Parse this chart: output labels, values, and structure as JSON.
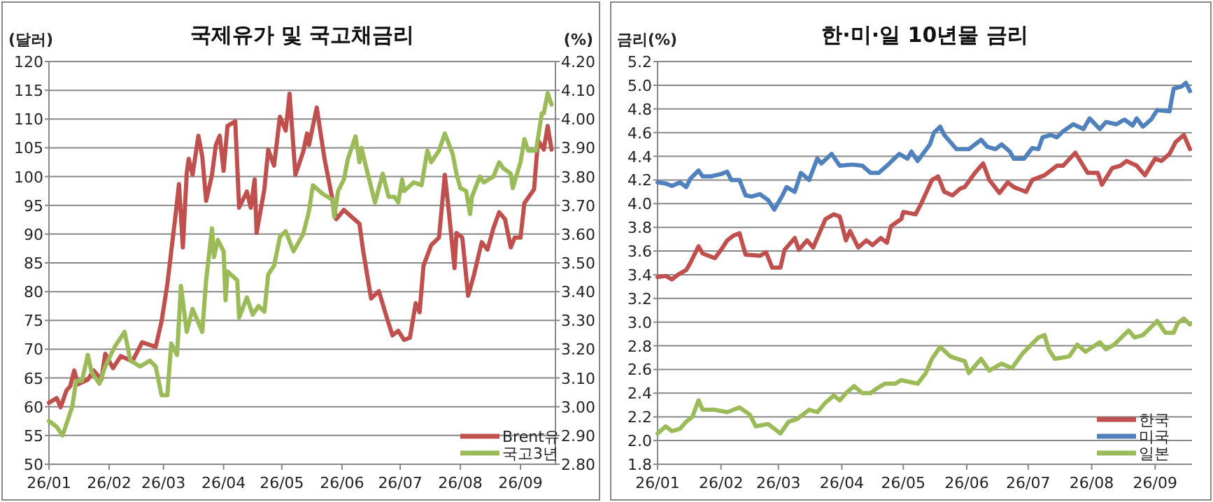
{
  "chart_data": [
    {
      "type": "line",
      "title": "국제유가 및 국고채금리",
      "ylabel": "(달러)",
      "y2label": "(%)",
      "grid": "y",
      "legend": "bottom right",
      "xlim": [
        "--01-01",
        "--09-19"
      ],
      "xticks": [
        {
          "value": "--01-01",
          "label": "26/01"
        },
        {
          "value": "--02-01",
          "label": "26/02"
        },
        {
          "value": "--03-01",
          "label": "26/03"
        },
        {
          "value": "--04-01",
          "label": "26/04"
        },
        {
          "value": "--05-01",
          "label": "26/05"
        },
        {
          "value": "--06-01",
          "label": "26/06"
        },
        {
          "value": "--07-01",
          "label": "26/07"
        },
        {
          "value": "--08-01",
          "label": "26/08"
        },
        {
          "value": "--09-01",
          "label": "26/09"
        }
      ],
      "ylim": [
        50,
        120
      ],
      "yticks": [
        50,
        55,
        60,
        65,
        70,
        75,
        80,
        85,
        90,
        95,
        100,
        105,
        110,
        115,
        120
      ],
      "y2lim": [
        2.8,
        4.2
      ],
      "y2ticks": [
        {
          "value": 2.8,
          "label": "2.80"
        },
        {
          "value": 2.9,
          "label": "2.90"
        },
        {
          "value": 3.0,
          "label": "3.00"
        },
        {
          "value": 3.1,
          "label": "3.10"
        },
        {
          "value": 3.2,
          "label": "3.20"
        },
        {
          "value": 3.3,
          "label": "3.30"
        },
        {
          "value": 3.4,
          "label": "3.40"
        },
        {
          "value": 3.5,
          "label": "3.50"
        },
        {
          "value": 3.6,
          "label": "3.60"
        },
        {
          "value": 3.7,
          "label": "3.70"
        },
        {
          "value": 3.8,
          "label": "3.80"
        },
        {
          "value": 3.9,
          "label": "3.90"
        },
        {
          "value": 4.0,
          "label": "4.00"
        },
        {
          "value": 4.1,
          "label": "4.10"
        },
        {
          "value": 4.2,
          "label": "4.20"
        }
      ],
      "series": [
        {
          "name": "Brent유",
          "color": "#c0504d",
          "x": [
            "--01-01",
            "--01-05",
            "--01-07",
            "--01-10",
            "--01-12",
            "--01-14",
            "--01-16",
            "--01-21",
            "--01-24",
            "--01-28",
            "--01-30",
            "--02-03",
            "--02-07",
            "--02-13",
            "--02-18",
            "--02-25",
            "--02-28",
            "--03-03",
            "--03-07",
            "--03-09",
            "--03-11",
            "--03-13",
            "--03-14",
            "--03-16",
            "--03-19",
            "--03-21",
            "--03-23",
            "--03-26",
            "--03-28",
            "--03-30",
            "--04-01",
            "--04-03",
            "--04-07",
            "--04-09",
            "--04-13",
            "--04-15",
            "--04-17",
            "--04-18",
            "--04-22",
            "--04-24",
            "--04-27",
            "--04-30",
            "--05-03",
            "--05-05",
            "--05-08",
            "--05-12",
            "--05-14",
            "--05-15",
            "--05-19",
            "--05-21",
            "--05-23",
            "--05-26",
            "--05-29",
            "--06-02",
            "--06-06",
            "--06-10",
            "--06-12",
            "--06-16",
            "--06-20",
            "--06-24",
            "--06-27",
            "--06-30",
            "--07-03",
            "--07-06",
            "--07-09",
            "--07-11",
            "--07-13",
            "--07-17",
            "--07-21",
            "--07-24",
            "--07-26",
            "--07-29",
            "--07-30",
            "--08-02",
            "--08-05",
            "--08-08",
            "--08-12",
            "--08-15",
            "--08-18",
            "--08-21",
            "--08-24",
            "--08-27",
            "--08-29",
            "--09-01",
            "--09-03",
            "--09-08",
            "--09-10",
            "--09-13",
            "--09-15",
            "--09-17"
          ],
          "values": [
            60.7,
            61.5,
            59.9,
            62.8,
            63.6,
            66.3,
            63.9,
            64.7,
            66.3,
            64.7,
            69.2,
            66.7,
            68.8,
            67.9,
            71.2,
            70.4,
            74.8,
            81.3,
            92.6,
            98.7,
            87.7,
            100.7,
            103.1,
            100.3,
            107.1,
            103.5,
            95.8,
            100.3,
            105.5,
            107.1,
            101.0,
            108.8,
            109.6,
            94.6,
            97.4,
            94.6,
            99.5,
            90.2,
            97.8,
            104.7,
            101.9,
            110.4,
            108.0,
            114.4,
            100.3,
            104.3,
            107.5,
            105.5,
            112.0,
            107.5,
            103.1,
            97.9,
            92.6,
            94.2,
            93.0,
            91.8,
            86.9,
            78.8,
            80.1,
            75.6,
            72.4,
            73.2,
            71.6,
            72.0,
            78.0,
            76.4,
            84.5,
            88.1,
            89.4,
            100.3,
            94.2,
            84.1,
            90.2,
            89.4,
            79.3,
            82.9,
            88.6,
            87.3,
            91.0,
            93.8,
            92.6,
            87.7,
            89.4,
            89.4,
            95.4,
            97.8,
            106.3,
            104.7,
            108.8,
            104.7
          ]
        },
        {
          "name": "국고3년",
          "color": "#9bbb59",
          "axis": "y2",
          "x": [
            "--01-01",
            "--01-05",
            "--01-08",
            "--01-10",
            "--01-13",
            "--01-15",
            "--01-18",
            "--01-21",
            "--01-23",
            "--01-27",
            "--01-30",
            "--02-04",
            "--02-09",
            "--02-12",
            "--02-17",
            "--02-22",
            "--02-25",
            "--02-28",
            "--03-03",
            "--03-05",
            "--03-08",
            "--03-10",
            "--03-13",
            "--03-16",
            "--03-21",
            "--03-23",
            "--03-26",
            "--03-27",
            "--03-29",
            "--04-01",
            "--04-02",
            "--04-03",
            "--04-08",
            "--04-09",
            "--04-13",
            "--04-16",
            "--04-19",
            "--04-22",
            "--04-24",
            "--04-27",
            "--04-30",
            "--05-03",
            "--05-07",
            "--05-12",
            "--05-15",
            "--05-17",
            "--05-22",
            "--05-27",
            "--05-28",
            "--05-30",
            "--06-02",
            "--06-04",
            "--06-08",
            "--06-10",
            "--06-11",
            "--06-15",
            "--06-18",
            "--06-22",
            "--06-25",
            "--06-28",
            "--06-30",
            "--07-02",
            "--07-03",
            "--07-08",
            "--07-12",
            "--07-15",
            "--07-17",
            "--07-21",
            "--07-24",
            "--07-28",
            "--07-30",
            "--08-01",
            "--08-04",
            "--08-06",
            "--08-07",
            "--08-11",
            "--08-13",
            "--08-18",
            "--08-21",
            "--08-23",
            "--08-27",
            "--08-28",
            "--09-01",
            "--09-03",
            "--09-05",
            "--09-09",
            "--09-12",
            "--09-13",
            "--09-15",
            "--09-17"
          ],
          "values": [
            2.95,
            2.93,
            2.9,
            2.94,
            3.0,
            3.09,
            3.09,
            3.18,
            3.12,
            3.08,
            3.14,
            3.21,
            3.26,
            3.16,
            3.14,
            3.16,
            3.14,
            3.04,
            3.04,
            3.22,
            3.18,
            3.42,
            3.26,
            3.34,
            3.26,
            3.44,
            3.62,
            3.52,
            3.58,
            3.54,
            3.37,
            3.47,
            3.44,
            3.31,
            3.38,
            3.32,
            3.35,
            3.33,
            3.46,
            3.49,
            3.59,
            3.61,
            3.54,
            3.6,
            3.68,
            3.77,
            3.74,
            3.72,
            3.66,
            3.75,
            3.79,
            3.86,
            3.94,
            3.85,
            3.9,
            3.79,
            3.71,
            3.81,
            3.73,
            3.73,
            3.71,
            3.79,
            3.75,
            3.78,
            3.77,
            3.89,
            3.85,
            3.89,
            3.95,
            3.88,
            3.81,
            3.76,
            3.75,
            3.67,
            3.73,
            3.8,
            3.78,
            3.8,
            3.85,
            3.83,
            3.81,
            3.76,
            3.85,
            3.93,
            3.89,
            3.89,
            4.02,
            4.02,
            4.09,
            4.05
          ]
        }
      ]
    },
    {
      "type": "line",
      "title": "한·미·일 10년물 금리",
      "ylabel": "금리(%)",
      "grid": "y",
      "legend": "bottom right",
      "xlim": [
        "--01-01",
        "--09-19"
      ],
      "xticks": [
        {
          "value": "--01-01",
          "label": "26/01"
        },
        {
          "value": "--02-01",
          "label": "26/02"
        },
        {
          "value": "--03-01",
          "label": "26/03"
        },
        {
          "value": "--04-01",
          "label": "26/04"
        },
        {
          "value": "--05-01",
          "label": "26/05"
        },
        {
          "value": "--06-01",
          "label": "26/06"
        },
        {
          "value": "--07-01",
          "label": "26/07"
        },
        {
          "value": "--08-01",
          "label": "26/08"
        },
        {
          "value": "--09-01",
          "label": "26/09"
        }
      ],
      "ylim": [
        1.8,
        5.2
      ],
      "yticks": [
        {
          "value": 1.8,
          "label": "1.8"
        },
        {
          "value": 2.0,
          "label": "2.0"
        },
        {
          "value": 2.2,
          "label": "2.2"
        },
        {
          "value": 2.4,
          "label": "2.4"
        },
        {
          "value": 2.6,
          "label": "2.6"
        },
        {
          "value": 2.8,
          "label": "2.8"
        },
        {
          "value": 3.0,
          "label": "3.0"
        },
        {
          "value": 3.2,
          "label": "3.2"
        },
        {
          "value": 3.4,
          "label": "3.4"
        },
        {
          "value": 3.6,
          "label": "3.6"
        },
        {
          "value": 3.8,
          "label": "3.8"
        },
        {
          "value": 4.0,
          "label": "4.0"
        },
        {
          "value": 4.2,
          "label": "4.2"
        },
        {
          "value": 4.4,
          "label": "4.4"
        },
        {
          "value": 4.6,
          "label": "4.6"
        },
        {
          "value": 4.8,
          "label": "4.8"
        },
        {
          "value": 5.0,
          "label": "5.0"
        },
        {
          "value": 5.2,
          "label": "5.2"
        }
      ],
      "series": [
        {
          "name": "한국",
          "color": "#c0504d",
          "x": [
            "--01-01",
            "--01-05",
            "--01-08",
            "--01-11",
            "--01-15",
            "--01-17",
            "--01-21",
            "--01-23",
            "--01-29",
            "--02-01",
            "--02-04",
            "--02-07",
            "--02-10",
            "--02-13",
            "--02-20",
            "--02-23",
            "--02-26",
            "--03-02",
            "--03-04",
            "--03-09",
            "--03-11",
            "--03-15",
            "--03-18",
            "--03-21",
            "--03-24",
            "--03-28",
            "--03-31",
            "--04-03",
            "--04-05",
            "--04-09",
            "--04-13",
            "--04-16",
            "--04-20",
            "--04-23",
            "--04-25",
            "--04-30",
            "--05-01",
            "--05-07",
            "--05-10",
            "--05-15",
            "--05-18",
            "--05-21",
            "--05-25",
            "--05-29",
            "--05-31",
            "--06-05",
            "--06-09",
            "--06-12",
            "--06-17",
            "--06-21",
            "--06-24",
            "--06-27",
            "--06-30",
            "--07-03",
            "--07-09",
            "--07-15",
            "--07-18",
            "--07-24",
            "--07-30",
            "--08-04",
            "--08-06",
            "--08-11",
            "--08-15",
            "--08-18",
            "--08-23",
            "--08-27",
            "--09-01",
            "--09-04",
            "--09-08",
            "--09-11",
            "--09-15",
            "--09-18"
          ],
          "values": [
            3.38,
            3.39,
            3.36,
            3.4,
            3.44,
            3.5,
            3.64,
            3.58,
            3.54,
            3.61,
            3.69,
            3.73,
            3.75,
            3.57,
            3.56,
            3.59,
            3.46,
            3.46,
            3.61,
            3.71,
            3.61,
            3.69,
            3.63,
            3.75,
            3.87,
            3.91,
            3.89,
            3.69,
            3.77,
            3.63,
            3.69,
            3.65,
            3.71,
            3.67,
            3.81,
            3.87,
            3.93,
            3.91,
            4.01,
            4.2,
            4.23,
            4.1,
            4.07,
            4.13,
            4.14,
            4.26,
            4.34,
            4.2,
            4.09,
            4.18,
            4.14,
            4.12,
            4.1,
            4.2,
            4.24,
            4.32,
            4.32,
            4.43,
            4.26,
            4.26,
            4.16,
            4.3,
            4.32,
            4.36,
            4.32,
            4.24,
            4.38,
            4.36,
            4.42,
            4.52,
            4.58,
            4.46
          ]
        },
        {
          "name": "미국",
          "color": "#4f81bd",
          "x": [
            "--01-01",
            "--01-05",
            "--01-08",
            "--01-12",
            "--01-15",
            "--01-17",
            "--01-21",
            "--01-23",
            "--01-27",
            "--02-01",
            "--02-04",
            "--02-06",
            "--02-10",
            "--02-13",
            "--02-16",
            "--02-20",
            "--02-24",
            "--02-27",
            "--03-03",
            "--03-05",
            "--03-09",
            "--03-12",
            "--03-16",
            "--03-20",
            "--03-22",
            "--03-27",
            "--03-31",
            "--04-06",
            "--04-11",
            "--04-15",
            "--04-19",
            "--04-23",
            "--04-29",
            "--05-03",
            "--05-05",
            "--05-08",
            "--05-14",
            "--05-16",
            "--05-19",
            "--05-21",
            "--05-27",
            "--06-02",
            "--06-08",
            "--06-11",
            "--06-15",
            "--06-18",
            "--06-22",
            "--06-24",
            "--06-29",
            "--07-03",
            "--07-06",
            "--07-08",
            "--07-12",
            "--07-15",
            "--07-18",
            "--07-23",
            "--07-28",
            "--07-31",
            "--08-05",
            "--08-08",
            "--08-13",
            "--08-17",
            "--08-21",
            "--08-23",
            "--08-26",
            "--08-30",
            "--09-02",
            "--09-08",
            "--09-10",
            "--09-14",
            "--09-16",
            "--09-18"
          ],
          "values": [
            4.18,
            4.17,
            4.15,
            4.18,
            4.14,
            4.21,
            4.28,
            4.23,
            4.23,
            4.25,
            4.27,
            4.2,
            4.2,
            4.07,
            4.06,
            4.08,
            4.03,
            3.95,
            4.07,
            4.14,
            4.1,
            4.26,
            4.2,
            4.38,
            4.34,
            4.42,
            4.32,
            4.33,
            4.32,
            4.26,
            4.26,
            4.32,
            4.42,
            4.38,
            4.44,
            4.36,
            4.5,
            4.6,
            4.65,
            4.58,
            4.46,
            4.46,
            4.54,
            4.48,
            4.46,
            4.5,
            4.44,
            4.38,
            4.38,
            4.47,
            4.46,
            4.56,
            4.58,
            4.56,
            4.61,
            4.67,
            4.63,
            4.72,
            4.63,
            4.69,
            4.67,
            4.71,
            4.66,
            4.72,
            4.65,
            4.71,
            4.79,
            4.78,
            4.97,
            4.99,
            5.02,
            4.95
          ]
        },
        {
          "name": "일본",
          "color": "#9bbb59",
          "x": [
            "--01-01",
            "--01-05",
            "--01-08",
            "--01-12",
            "--01-15",
            "--01-18",
            "--01-21",
            "--01-23",
            "--01-29",
            "--02-04",
            "--02-10",
            "--02-15",
            "--02-18",
            "--02-24",
            "--03-02",
            "--03-06",
            "--03-10",
            "--03-16",
            "--03-20",
            "--03-24",
            "--03-28",
            "--03-31",
            "--04-03",
            "--04-07",
            "--04-11",
            "--04-15",
            "--04-18",
            "--04-22",
            "--04-27",
            "--04-30",
            "--05-08",
            "--05-12",
            "--05-15",
            "--05-19",
            "--05-24",
            "--05-31",
            "--06-02",
            "--06-08",
            "--06-12",
            "--06-18",
            "--06-23",
            "--06-28",
            "--07-06",
            "--07-09",
            "--07-11",
            "--07-14",
            "--07-21",
            "--07-25",
            "--07-29",
            "--08-05",
            "--08-08",
            "--08-12",
            "--08-19",
            "--08-22",
            "--08-26",
            "--09-02",
            "--09-06",
            "--09-10",
            "--09-12",
            "--09-15",
            "--09-18"
          ],
          "values": [
            2.06,
            2.12,
            2.08,
            2.1,
            2.16,
            2.2,
            2.34,
            2.26,
            2.26,
            2.24,
            2.28,
            2.22,
            2.12,
            2.14,
            2.06,
            2.16,
            2.18,
            2.26,
            2.24,
            2.32,
            2.38,
            2.34,
            2.4,
            2.46,
            2.4,
            2.4,
            2.44,
            2.48,
            2.48,
            2.51,
            2.48,
            2.57,
            2.69,
            2.79,
            2.71,
            2.67,
            2.57,
            2.69,
            2.59,
            2.65,
            2.61,
            2.73,
            2.87,
            2.89,
            2.77,
            2.69,
            2.71,
            2.81,
            2.75,
            2.83,
            2.77,
            2.81,
            2.93,
            2.87,
            2.89,
            3.01,
            2.91,
            2.91,
            2.99,
            3.03,
            2.98
          ]
        }
      ]
    }
  ]
}
